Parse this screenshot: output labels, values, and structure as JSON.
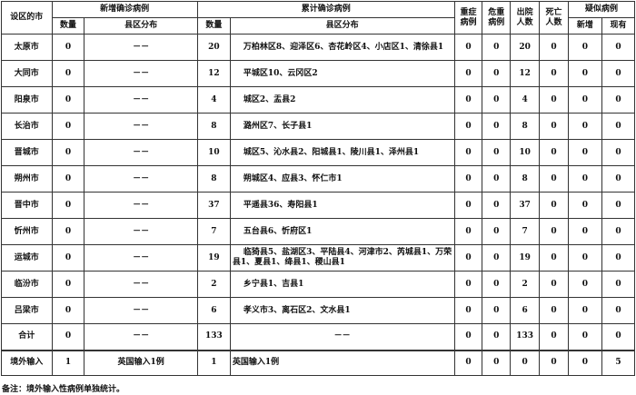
{
  "header": {
    "city": "设区的市",
    "new_confirmed": "新增确诊病例",
    "total_confirmed": "累计确诊病例",
    "severe": "重症病例",
    "critical": "危重病例",
    "discharged": "出院人数",
    "deaths": "死亡人数",
    "suspected": "疑似病例",
    "count": "数量",
    "distribution": "县区分布",
    "suspected_new": "新增",
    "suspected_current": "现有"
  },
  "rows": [
    {
      "city": "太原市",
      "new_count": "0",
      "new_dist": "－－",
      "total_count": "20",
      "total_dist": "万柏林区8、迎泽区6、杏花岭区4、小店区1、清徐县1",
      "severe": "0",
      "critical": "0",
      "discharged": "20",
      "deaths": "0",
      "susp_new": "0",
      "susp_cur": "0"
    },
    {
      "city": "大同市",
      "new_count": "0",
      "new_dist": "－－",
      "total_count": "12",
      "total_dist": "平城区10、云冈区2",
      "severe": "0",
      "critical": "0",
      "discharged": "12",
      "deaths": "0",
      "susp_new": "0",
      "susp_cur": "0"
    },
    {
      "city": "阳泉市",
      "new_count": "0",
      "new_dist": "－－",
      "total_count": "4",
      "total_dist": "城区2、盂县2",
      "severe": "0",
      "critical": "0",
      "discharged": "4",
      "deaths": "0",
      "susp_new": "0",
      "susp_cur": "0"
    },
    {
      "city": "长治市",
      "new_count": "0",
      "new_dist": "－－",
      "total_count": "8",
      "total_dist": "潞州区7、长子县1",
      "severe": "0",
      "critical": "0",
      "discharged": "8",
      "deaths": "0",
      "susp_new": "0",
      "susp_cur": "0"
    },
    {
      "city": "晋城市",
      "new_count": "0",
      "new_dist": "－－",
      "total_count": "10",
      "total_dist": "城区5、沁水县2、阳城县1、陵川县1、泽州县1",
      "severe": "0",
      "critical": "0",
      "discharged": "10",
      "deaths": "0",
      "susp_new": "0",
      "susp_cur": "0"
    },
    {
      "city": "朔州市",
      "new_count": "0",
      "new_dist": "－－",
      "total_count": "8",
      "total_dist": "朔城区4、应县3、怀仁市1",
      "severe": "0",
      "critical": "0",
      "discharged": "8",
      "deaths": "0",
      "susp_new": "0",
      "susp_cur": "0"
    },
    {
      "city": "晋中市",
      "new_count": "0",
      "new_dist": "－－",
      "total_count": "37",
      "total_dist": "平遥县36、寿阳县1",
      "severe": "0",
      "critical": "0",
      "discharged": "37",
      "deaths": "0",
      "susp_new": "0",
      "susp_cur": "0"
    },
    {
      "city": "忻州市",
      "new_count": "0",
      "new_dist": "－－",
      "total_count": "7",
      "total_dist": "五台县6、忻府区1",
      "severe": "0",
      "critical": "0",
      "discharged": "7",
      "deaths": "0",
      "susp_new": "0",
      "susp_cur": "0"
    },
    {
      "city": "运城市",
      "new_count": "0",
      "new_dist": "－－",
      "total_count": "19",
      "total_dist": "临猗县5、盐湖区3、平陆县4、河津市2、芮城县1、万荣县1、夏县1、绛县1、稷山县1",
      "severe": "0",
      "critical": "0",
      "discharged": "19",
      "deaths": "0",
      "susp_new": "0",
      "susp_cur": "0"
    },
    {
      "city": "临汾市",
      "new_count": "0",
      "new_dist": "－－",
      "total_count": "2",
      "total_dist": "乡宁县1、吉县1",
      "severe": "0",
      "critical": "0",
      "discharged": "2",
      "deaths": "0",
      "susp_new": "0",
      "susp_cur": "0"
    },
    {
      "city": "吕梁市",
      "new_count": "0",
      "new_dist": "－－",
      "total_count": "6",
      "total_dist": "孝义市3、离石区2、文水县1",
      "severe": "0",
      "critical": "0",
      "discharged": "6",
      "deaths": "0",
      "susp_new": "0",
      "susp_cur": "0"
    },
    {
      "city": "合计",
      "new_count": "0",
      "new_dist": "－－",
      "total_count": "133",
      "total_dist": "－－",
      "severe": "0",
      "critical": "0",
      "discharged": "133",
      "deaths": "0",
      "susp_new": "0",
      "susp_cur": "0"
    },
    {
      "city": "境外输入",
      "new_count": "1",
      "new_dist": "英国输入1例",
      "total_count": "1",
      "total_dist": "英国输入1例",
      "severe": "0",
      "critical": "0",
      "discharged": "0",
      "deaths": "0",
      "susp_new": "0",
      "susp_cur": "5"
    }
  ],
  "note": "备注：境外输入性病例单独统计。"
}
